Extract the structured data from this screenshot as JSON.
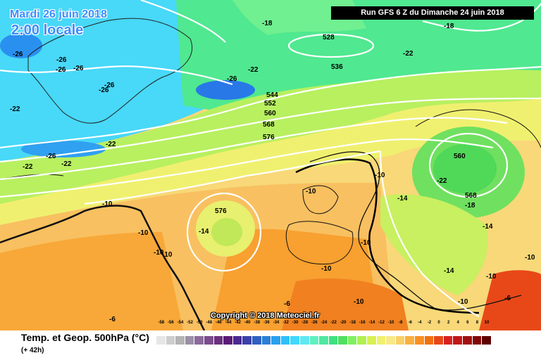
{
  "title": {
    "date": "Mardi 26 juin 2018",
    "time": "2:00 locale",
    "run": "Run GFS 6 Z du Dimanche 24 juin 2018"
  },
  "footer": {
    "variable": "Temp. et Geop. 500hPa (°C)",
    "forecast_hour": "(+ 42h)",
    "copyright": "Copyright © 2018 Meteociel.fr"
  },
  "legend": {
    "ticks": [
      "-58",
      "-56",
      "-54",
      "-52",
      "-50",
      "-48",
      "-46",
      "-44",
      "-42",
      "-40",
      "-38",
      "-36",
      "-34",
      "-32",
      "-30",
      "-28",
      "-26",
      "-24",
      "-22",
      "-20",
      "-18",
      "-16",
      "-14",
      "-12",
      "-10",
      "-8",
      "-6",
      "-4",
      "-2",
      "0",
      "2",
      "4",
      "6",
      "8",
      "10"
    ],
    "colors": [
      "#e6e6e6",
      "#cdcdcd",
      "#b4b4b4",
      "#9b8fa8",
      "#8a6a9a",
      "#7a4c8c",
      "#6a2f80",
      "#5a1a78",
      "#4a2890",
      "#3a40a8",
      "#3060c0",
      "#2a80d8",
      "#2aa0ee",
      "#30c0f8",
      "#40d8ff",
      "#60e8f0",
      "#60f0c0",
      "#50e8a0",
      "#40e080",
      "#50e060",
      "#80f060",
      "#b0f050",
      "#d8f050",
      "#f0f070",
      "#f8e888",
      "#f8d068",
      "#f8b040",
      "#f89020",
      "#f07010",
      "#e84818",
      "#d82020",
      "#c01818",
      "#a01010",
      "#800808",
      "#600000"
    ]
  },
  "labels": {
    "temp": [
      "-26",
      "-26",
      "-26",
      "-26",
      "-26",
      "-26",
      "-26",
      "-26",
      "-22",
      "-22",
      "-22",
      "-22",
      "-18",
      "-18",
      "-22",
      "-22",
      "-22",
      "-18",
      "-14",
      "-14",
      "-14",
      "-14",
      "-10",
      "-10",
      "-10",
      "-10",
      "-10",
      "-10",
      "-10",
      "-10",
      "-10",
      "-10",
      "-10",
      "-6",
      "-6",
      "-6",
      "-10"
    ],
    "geop": [
      "528",
      "536",
      "544",
      "552",
      "560",
      "568",
      "576",
      "576",
      "560",
      "568"
    ]
  }
}
